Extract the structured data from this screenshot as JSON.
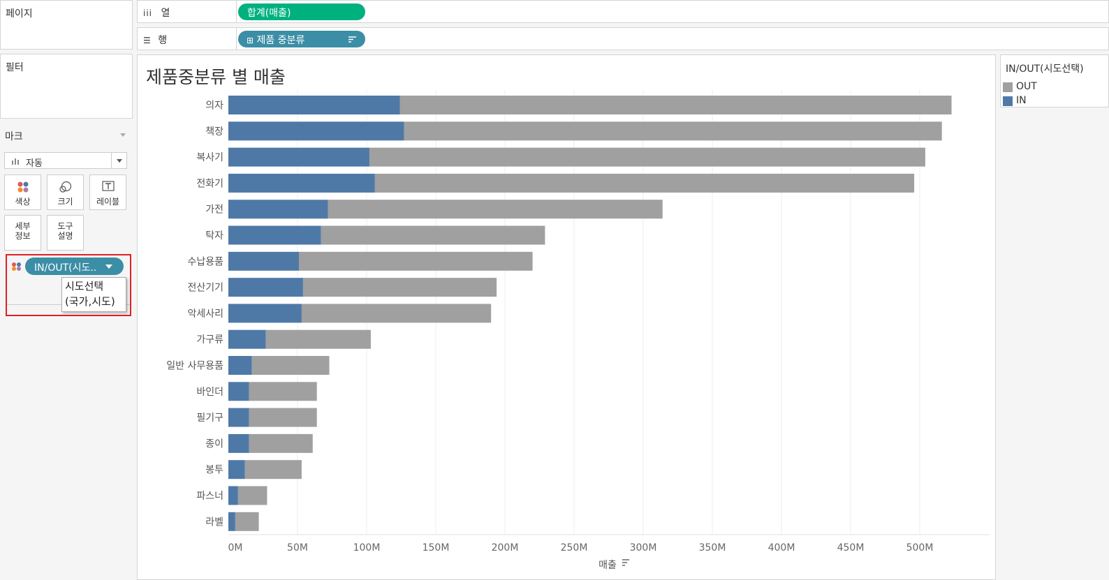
{
  "pages": {
    "title": "페이지"
  },
  "filters": {
    "title": "필터"
  },
  "marks": {
    "title": "마크",
    "mark_type": "자동",
    "buttons": {
      "color": "색상",
      "size": "크기",
      "label": "레이블",
      "detail_1": "세부",
      "detail_2": "정보",
      "tooltip_1": "도구",
      "tooltip_2": "설명"
    },
    "color_pill": "IN/OUT(시도..",
    "tooltip_text_1": "시도선택",
    "tooltip_text_2": "(국가,시도)"
  },
  "shelves": {
    "columns_label": "열",
    "columns_pill": "합계(매출)",
    "rows_label": "행",
    "rows_pill": "제품 중분류"
  },
  "legend": {
    "title": "IN/OUT(시도선택)",
    "items": [
      {
        "label": "OUT",
        "color": "#a0a0a0"
      },
      {
        "label": "IN",
        "color": "#4e79a7"
      }
    ]
  },
  "chart_data": {
    "type": "bar",
    "orientation": "horizontal",
    "stacked": true,
    "title": "제품중분류 별 매출",
    "xlabel": "매출",
    "ylabel": "",
    "xlim": [
      0,
      550
    ],
    "x_unit": "M",
    "x_ticks": [
      "0M",
      "50M",
      "100M",
      "150M",
      "200M",
      "250M",
      "300M",
      "350M",
      "400M",
      "450M",
      "500M"
    ],
    "x_tick_values": [
      0,
      50,
      100,
      150,
      200,
      250,
      300,
      350,
      400,
      450,
      500
    ],
    "gridlines": true,
    "legend_position": "top-right",
    "categories": [
      "의자",
      "책장",
      "복사기",
      "전화기",
      "가전",
      "탁자",
      "수납용품",
      "전산기기",
      "악세사리",
      "가구류",
      "일반 사무용품",
      "바인더",
      "필기구",
      "종이",
      "봉투",
      "파스너",
      "라벨"
    ],
    "series": [
      {
        "name": "IN",
        "color": "#4e79a7",
        "values": [
          124,
          127,
          102,
          106,
          72,
          67,
          51,
          54,
          53,
          27,
          17,
          15,
          15,
          15,
          12,
          7,
          5
        ]
      },
      {
        "name": "OUT",
        "color": "#a0a0a0",
        "values": [
          399,
          389,
          402,
          390,
          242,
          162,
          169,
          140,
          137,
          76,
          56,
          49,
          49,
          46,
          41,
          21,
          17
        ]
      }
    ]
  }
}
